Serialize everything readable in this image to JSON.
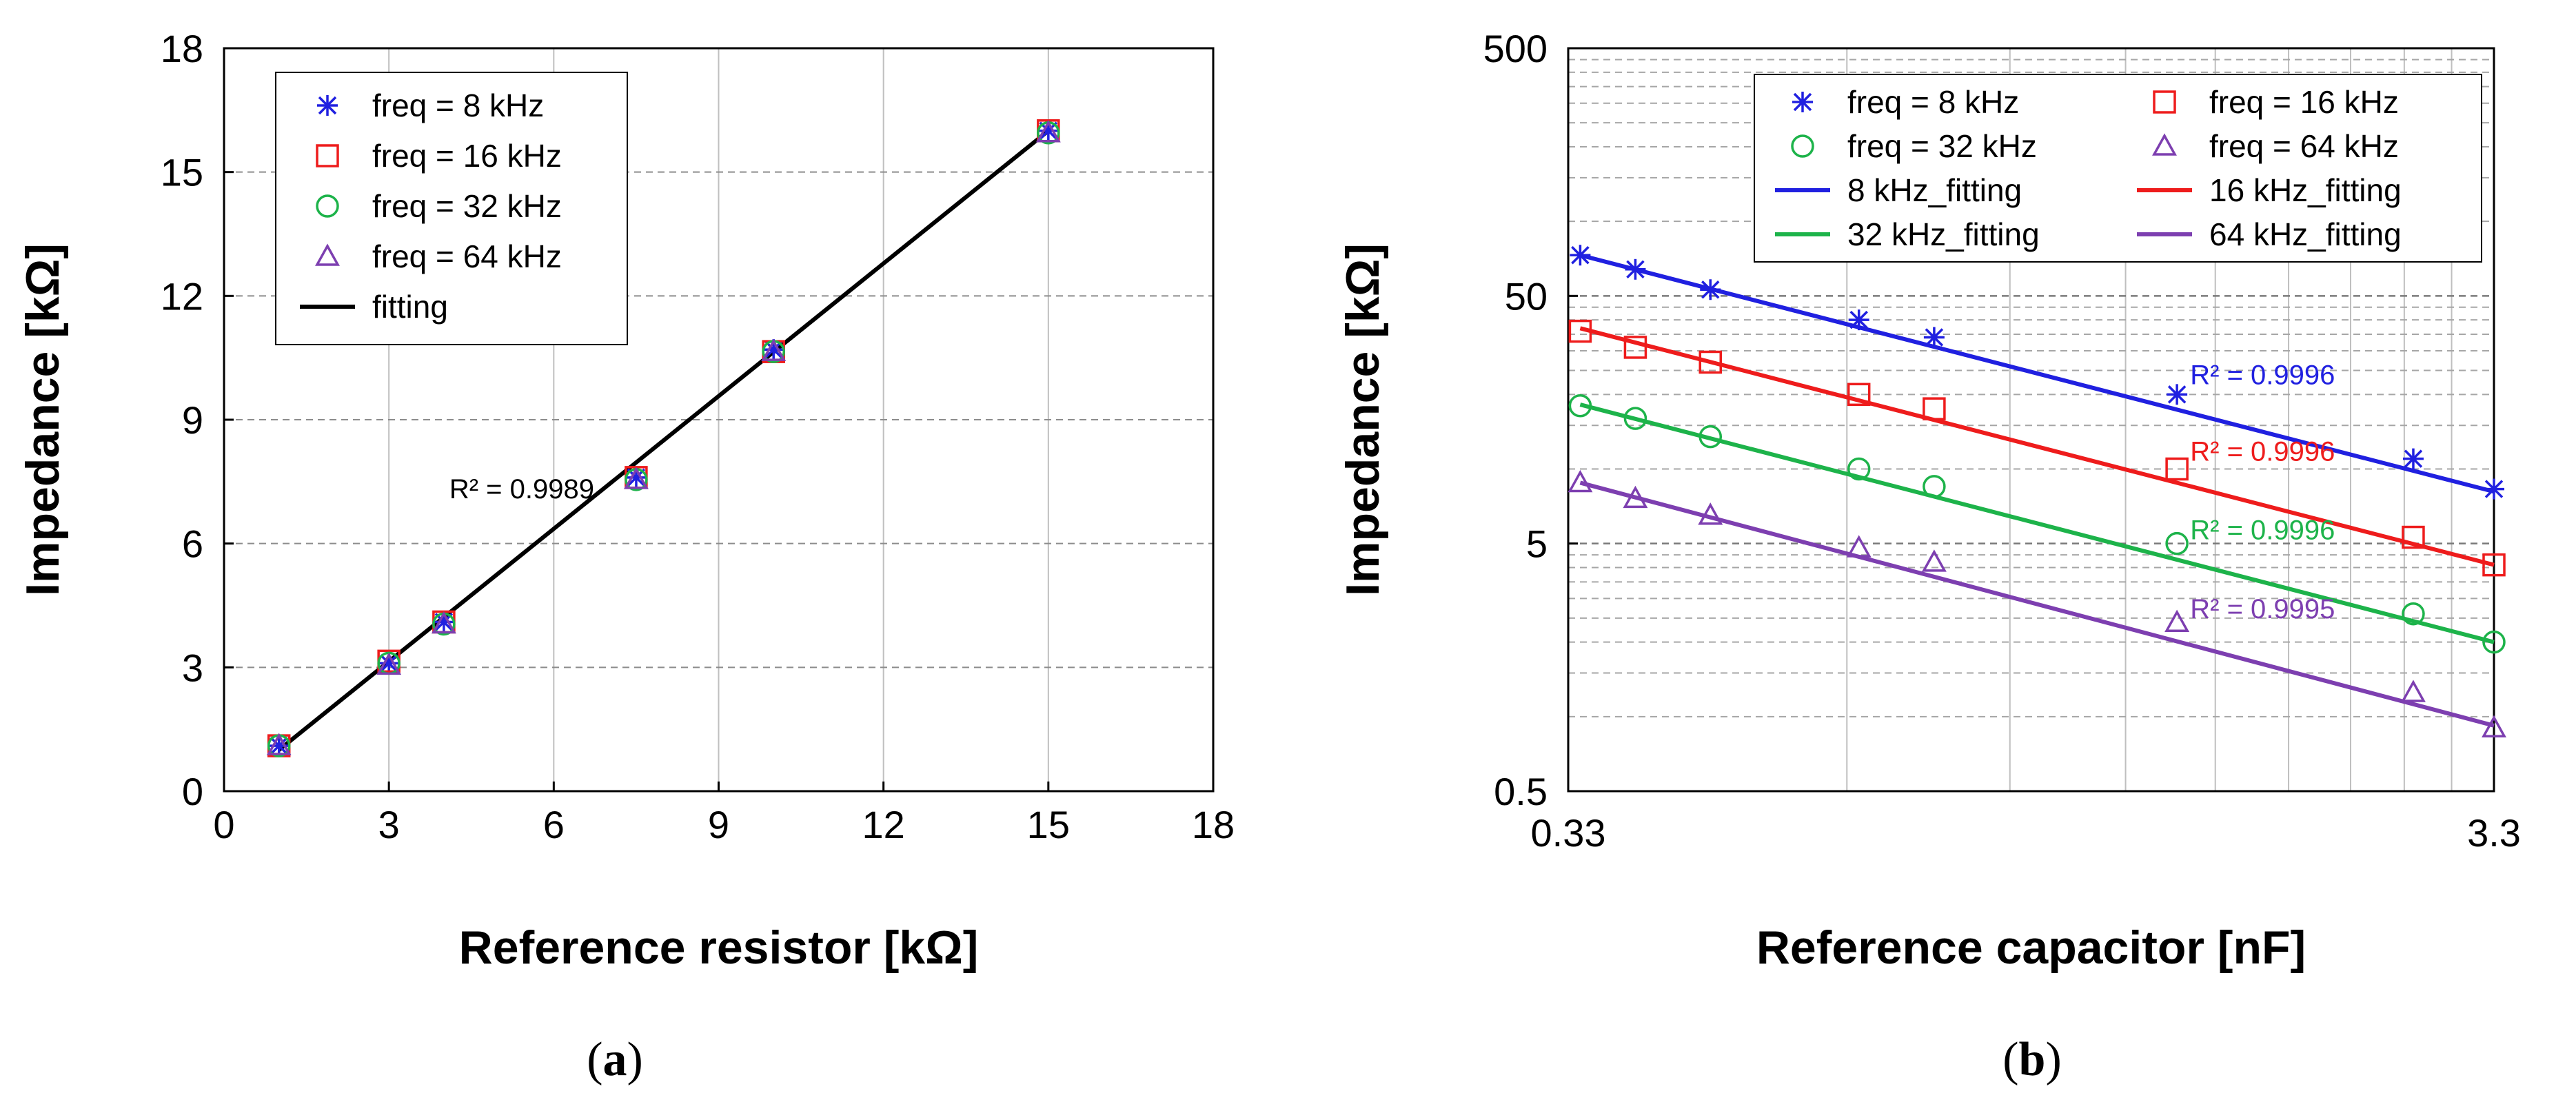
{
  "chart_data": [
    {
      "type": "scatter",
      "panel_label": {
        "open": "(",
        "letter": "a",
        "close": ")"
      },
      "xlabel": "Reference resistor [kΩ]",
      "ylabel": "Impedance [kΩ]",
      "xlim": [
        0,
        18
      ],
      "ylim": [
        0,
        18
      ],
      "xticks": [
        0,
        3,
        6,
        9,
        12,
        15,
        18
      ],
      "yticks": [
        0,
        3,
        6,
        9,
        12,
        15,
        18
      ],
      "grid": true,
      "legend_position": "top-left",
      "x": [
        1,
        3,
        4,
        7.5,
        10,
        15
      ],
      "series": [
        {
          "name": "freq = 8 kHz",
          "marker": "star",
          "color": "#2020e0",
          "values": [
            1.1,
            3.1,
            4.1,
            7.6,
            10.7,
            16.0
          ]
        },
        {
          "name": "freq = 16 kHz",
          "marker": "square",
          "color": "#ee1c1c",
          "values": [
            1.1,
            3.15,
            4.1,
            7.6,
            10.65,
            16.0
          ]
        },
        {
          "name": "freq = 32 kHz",
          "marker": "circle",
          "color": "#1db34a",
          "values": [
            1.1,
            3.1,
            4.05,
            7.55,
            10.65,
            15.95
          ]
        },
        {
          "name": "freq = 64 kHz",
          "marker": "triangle",
          "color": "#7d3fb0",
          "values": [
            1.1,
            3.05,
            4.05,
            7.55,
            10.65,
            15.95
          ]
        }
      ],
      "fits": [
        {
          "name": "fitting",
          "color": "#000000",
          "x": [
            1,
            15
          ],
          "y": [
            1.0,
            16.0
          ]
        }
      ],
      "annotations": [
        {
          "text": "R² = 0.9989",
          "x": 4.1,
          "y": 7.1,
          "color": "#000000"
        }
      ]
    },
    {
      "type": "scatter",
      "panel_label": {
        "open": "(",
        "letter": "b",
        "close": ")"
      },
      "xlabel": "Reference capacitor [nF]",
      "ylabel": "Impedance [kΩ]",
      "xscale": "log",
      "yscale": "log",
      "xlim": [
        0.33,
        3.3
      ],
      "ylim": [
        0.5,
        500
      ],
      "xticks": [
        {
          "value": 0.33,
          "label": "0.33"
        },
        {
          "value": 3.3,
          "label": "3.3"
        }
      ],
      "yticks": [
        {
          "value": 0.5,
          "label": "0.5"
        },
        {
          "value": 5,
          "label": "5"
        },
        {
          "value": 50,
          "label": "50"
        },
        {
          "value": 500,
          "label": "500"
        }
      ],
      "grid": true,
      "legend_position": "top-right",
      "x": [
        0.34,
        0.39,
        0.47,
        0.68,
        0.82,
        1.5,
        2.7,
        3.3
      ],
      "series": [
        {
          "name": "freq = 8 kHz",
          "marker": "star",
          "color": "#2020e0",
          "values": [
            73,
            64,
            53,
            40,
            34,
            20,
            11,
            8.3
          ]
        },
        {
          "name": "freq = 16 kHz",
          "marker": "square",
          "color": "#ee1c1c",
          "values": [
            36,
            31,
            27,
            20,
            17.5,
            10,
            5.3,
            4.1
          ]
        },
        {
          "name": "freq = 32 kHz",
          "marker": "circle",
          "color": "#1db34a",
          "values": [
            18,
            16,
            13.5,
            10,
            8.5,
            5.0,
            2.6,
            2.0
          ]
        },
        {
          "name": "freq = 64 kHz",
          "marker": "triangle",
          "color": "#7d3fb0",
          "values": [
            8.8,
            7.6,
            6.5,
            4.8,
            4.2,
            2.4,
            1.25,
            0.9
          ]
        }
      ],
      "fits": [
        {
          "name": "8 kHz_fitting",
          "color": "#2020e0",
          "x": [
            0.34,
            3.3
          ],
          "y": [
            73,
            8.1
          ]
        },
        {
          "name": "16 kHz_fitting",
          "color": "#ee1c1c",
          "x": [
            0.34,
            3.3
          ],
          "y": [
            37,
            4.1
          ]
        },
        {
          "name": "32 kHz_fitting",
          "color": "#1db34a",
          "x": [
            0.34,
            3.3
          ],
          "y": [
            18.2,
            2.0
          ]
        },
        {
          "name": "64 kHz_fitting",
          "color": "#7d3fb0",
          "x": [
            0.34,
            3.3
          ],
          "y": [
            8.8,
            0.92
          ]
        }
      ],
      "annotations": [
        {
          "text": "R² = 0.9996",
          "x": 1.55,
          "y": 22,
          "color": "#2020e0"
        },
        {
          "text": "R² = 0.9996",
          "x": 1.55,
          "y": 10.8,
          "color": "#ee1c1c"
        },
        {
          "text": "R² = 0.9996",
          "x": 1.55,
          "y": 5.2,
          "color": "#1db34a"
        },
        {
          "text": "R² = 0.9995",
          "x": 1.55,
          "y": 2.5,
          "color": "#7d3fb0"
        }
      ]
    }
  ]
}
